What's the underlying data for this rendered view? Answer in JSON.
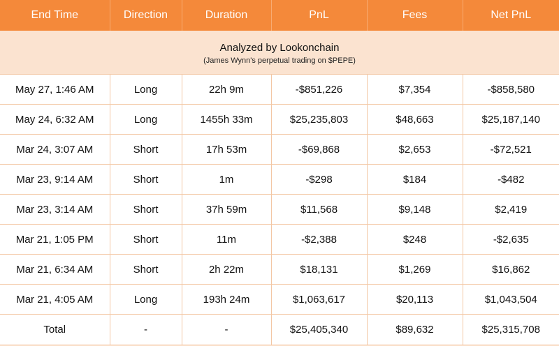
{
  "colors": {
    "header_bg": "#f4893a",
    "banner_bg": "#fbe3d0",
    "negative": "#e8201f",
    "grid_line": "#f3c7a4"
  },
  "table": {
    "headers": [
      "End Time",
      "Direction",
      "Duration",
      "PnL",
      "Fees",
      "Net PnL"
    ],
    "banner": {
      "title": "Analyzed by Lookonchain",
      "subtitle": "(James Wynn's perpetual trading on $PEPE)"
    },
    "rows": [
      {
        "end_time": "May 27, 1:46 AM",
        "direction": "Long",
        "duration": "22h 9m",
        "pnl": "-$851,226",
        "fees": "$7,354",
        "net_pnl": "-$858,580"
      },
      {
        "end_time": "May 24, 6:32 AM",
        "direction": "Long",
        "duration": "1455h 33m",
        "pnl": "$25,235,803",
        "fees": "$48,663",
        "net_pnl": "$25,187,140"
      },
      {
        "end_time": "Mar 24, 3:07 AM",
        "direction": "Short",
        "duration": "17h 53m",
        "pnl": "-$69,868",
        "fees": "$2,653",
        "net_pnl": "-$72,521"
      },
      {
        "end_time": "Mar 23, 9:14 AM",
        "direction": "Short",
        "duration": "1m",
        "pnl": "-$298",
        "fees": "$184",
        "net_pnl": "-$482"
      },
      {
        "end_time": "Mar 23, 3:14 AM",
        "direction": "Short",
        "duration": "37h 59m",
        "pnl": "$11,568",
        "fees": "$9,148",
        "net_pnl": "$2,419"
      },
      {
        "end_time": "Mar 21, 1:05 PM",
        "direction": "Short",
        "duration": "11m",
        "pnl": "-$2,388",
        "fees": "$248",
        "net_pnl": "-$2,635"
      },
      {
        "end_time": "Mar 21, 6:34 AM",
        "direction": "Short",
        "duration": "2h 22m",
        "pnl": "$18,131",
        "fees": "$1,269",
        "net_pnl": "$16,862"
      },
      {
        "end_time": "Mar 21, 4:05 AM",
        "direction": "Long",
        "duration": "193h 24m",
        "pnl": "$1,063,617",
        "fees": "$20,113",
        "net_pnl": "$1,043,504"
      }
    ],
    "total": {
      "end_time": "Total",
      "direction": "-",
      "duration": "-",
      "pnl": "$25,405,340",
      "fees": "$89,632",
      "net_pnl": "$25,315,708"
    }
  }
}
